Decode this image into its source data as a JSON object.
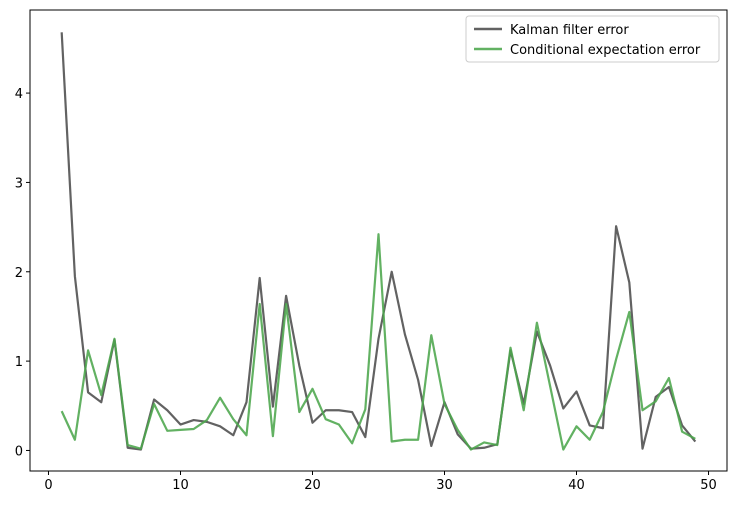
{
  "chart_data": {
    "type": "line",
    "title": "",
    "xlabel": "",
    "ylabel": "",
    "xlim": [
      -1.4,
      51.4
    ],
    "ylim": [
      -0.23,
      4.93
    ],
    "x_ticks": [
      0,
      10,
      20,
      30,
      40,
      50
    ],
    "y_ticks": [
      0,
      1,
      2,
      3,
      4
    ],
    "grid": false,
    "legend_position": "top-right",
    "x": [
      1,
      2,
      3,
      4,
      5,
      6,
      7,
      8,
      9,
      10,
      11,
      12,
      13,
      14,
      15,
      16,
      17,
      18,
      19,
      20,
      21,
      22,
      23,
      24,
      25,
      26,
      27,
      28,
      29,
      30,
      31,
      32,
      33,
      34,
      35,
      36,
      37,
      38,
      39,
      40,
      41,
      42,
      43,
      44,
      45,
      46,
      47,
      48,
      49
    ],
    "series": [
      {
        "name": "Kalman filter error",
        "color": "#555555",
        "values": [
          4.68,
          1.95,
          0.65,
          0.54,
          1.24,
          0.03,
          0.01,
          0.57,
          0.45,
          0.29,
          0.34,
          0.32,
          0.27,
          0.17,
          0.54,
          1.93,
          0.49,
          1.73,
          0.95,
          0.31,
          0.45,
          0.45,
          0.43,
          0.15,
          1.25,
          2.0,
          1.3,
          0.79,
          0.05,
          0.54,
          0.18,
          0.02,
          0.03,
          0.07,
          1.12,
          0.52,
          1.33,
          0.95,
          0.47,
          0.66,
          0.28,
          0.25,
          2.51,
          1.88,
          0.02,
          0.6,
          0.71,
          0.28,
          0.1
        ]
      },
      {
        "name": "Conditional expectation error",
        "color": "#4ca64c",
        "values": [
          0.44,
          0.12,
          1.12,
          0.62,
          1.25,
          0.06,
          0.02,
          0.52,
          0.22,
          0.23,
          0.24,
          0.34,
          0.59,
          0.35,
          0.17,
          1.64,
          0.16,
          1.64,
          0.43,
          0.69,
          0.35,
          0.29,
          0.08,
          0.46,
          2.42,
          0.1,
          0.12,
          0.12,
          1.29,
          0.52,
          0.23,
          0.01,
          0.09,
          0.06,
          1.15,
          0.45,
          1.43,
          0.72,
          0.01,
          0.27,
          0.12,
          0.43,
          1.02,
          1.55,
          0.45,
          0.55,
          0.81,
          0.21,
          0.13
        ]
      }
    ]
  }
}
